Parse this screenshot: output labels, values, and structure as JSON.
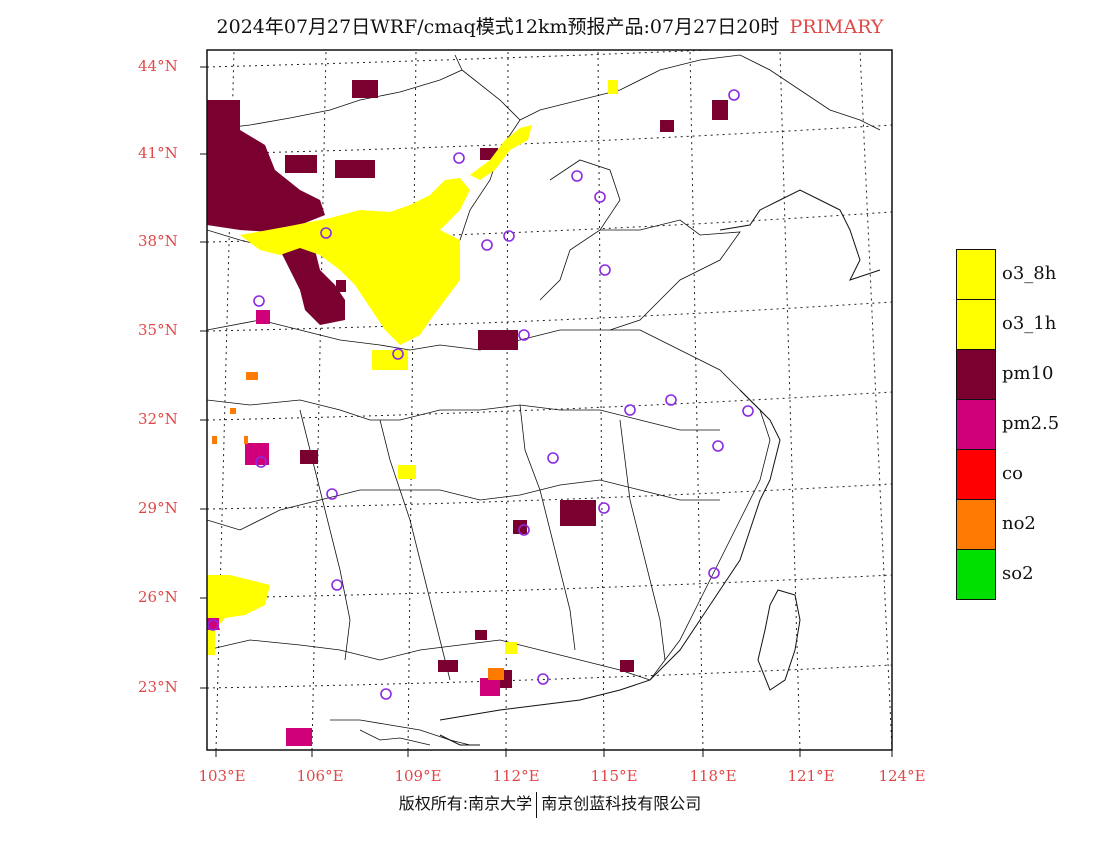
{
  "title": {
    "main": "2024年07月27日WRF/cmaq模式12km预报产品:07月27日20时",
    "tag": "PRIMARY"
  },
  "axes": {
    "lat_labels": [
      "44°N",
      "41°N",
      "38°N",
      "35°N",
      "32°N",
      "29°N",
      "26°N",
      "23°N"
    ],
    "lon_labels": [
      "103°E",
      "106°E",
      "109°E",
      "112°E",
      "115°E",
      "118°E",
      "121°E",
      "124°E"
    ]
  },
  "legend": [
    {
      "label": "o3_8h",
      "color": "#ffff00"
    },
    {
      "label": "o3_1h",
      "color": "#ffff00"
    },
    {
      "label": "pm10",
      "color": "#7a0030"
    },
    {
      "label": "pm2.5",
      "color": "#d0007a"
    },
    {
      "label": "co",
      "color": "#ff0000"
    },
    {
      "label": "no2",
      "color": "#ff7a00"
    },
    {
      "label": "so2",
      "color": "#00e000"
    }
  ],
  "copyright": {
    "left": "版权所有:南京大学",
    "right": "南京创蓝科技有限公司"
  },
  "colors": {
    "label_red": "#e04848",
    "station_circle": "#8a2be2",
    "frame": "#111111"
  }
}
